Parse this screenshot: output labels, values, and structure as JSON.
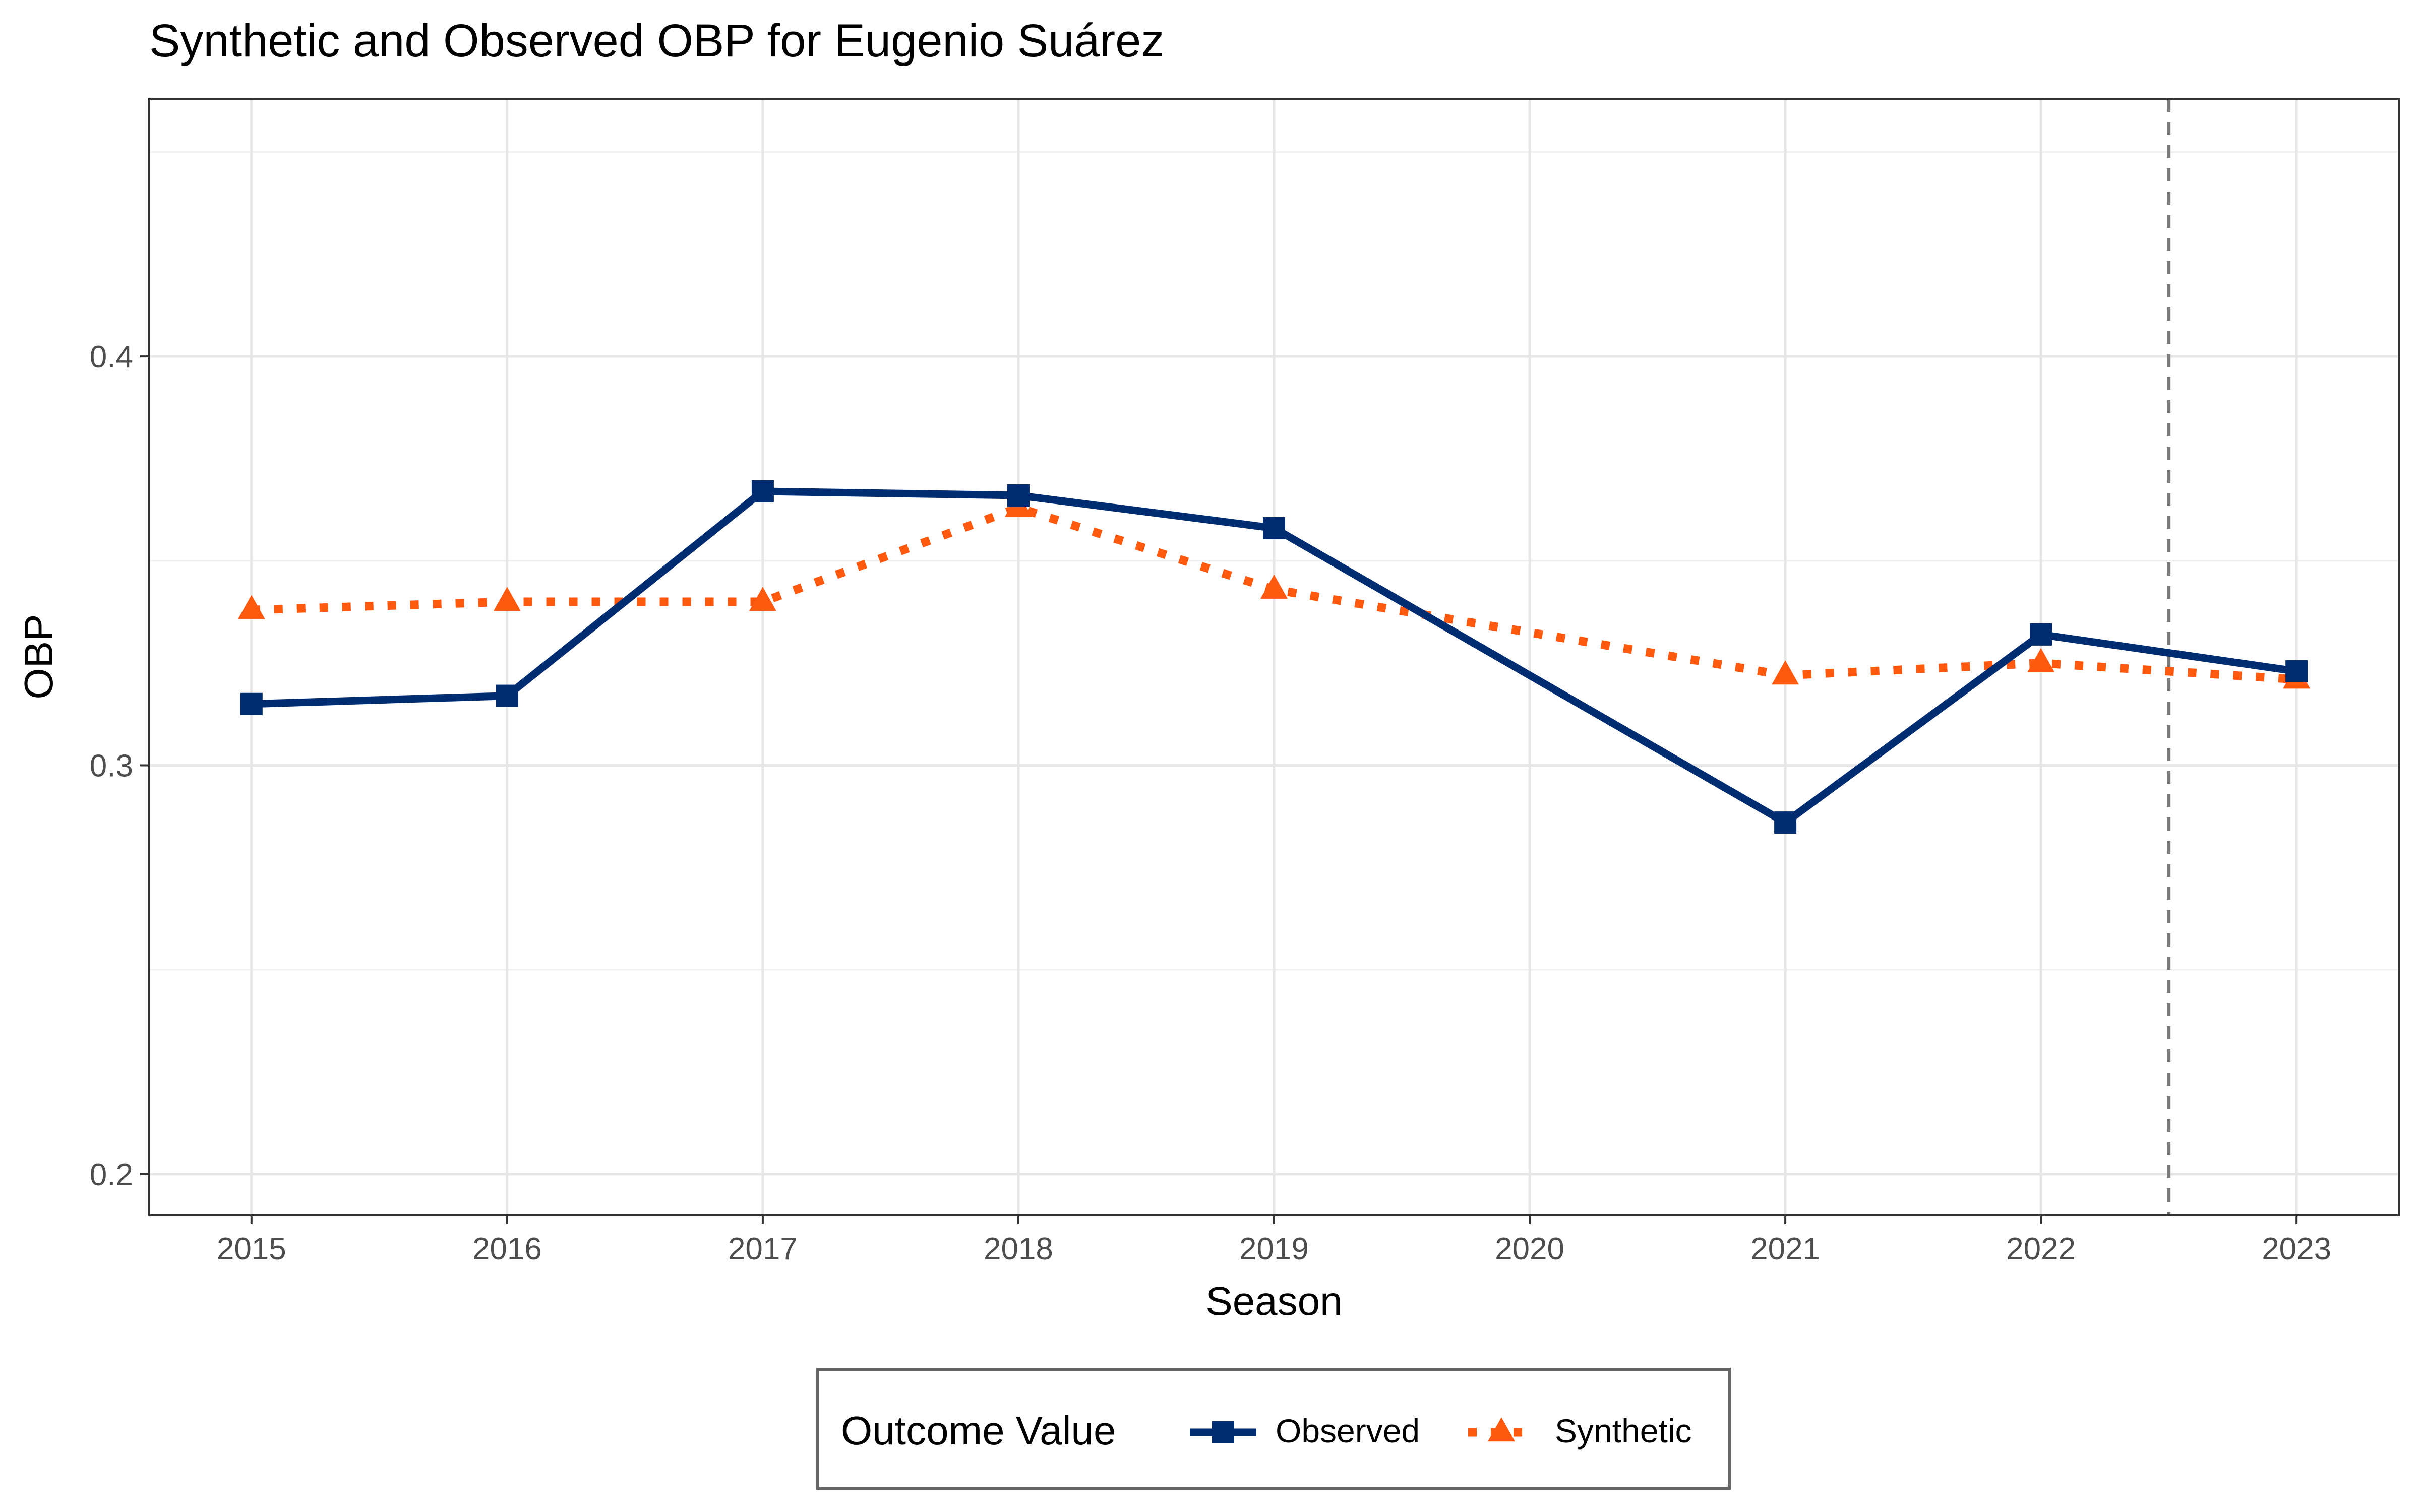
{
  "chart_data": {
    "type": "line",
    "title": "Synthetic and Observed OBP for Eugenio Suárez",
    "xlabel": "Season",
    "ylabel": "OBP",
    "x": [
      2015,
      2016,
      2017,
      2018,
      2019,
      2020,
      2021,
      2022,
      2023
    ],
    "x_tick_labels": [
      "2015",
      "2016",
      "2017",
      "2018",
      "2019",
      "2020",
      "2021",
      "2022",
      "2023"
    ],
    "y_ticks": [
      0.2,
      0.3,
      0.4
    ],
    "y_tick_labels": [
      "0.2",
      "0.3",
      "0.4"
    ],
    "xlim": [
      2014.6,
      2023.4
    ],
    "ylim": [
      0.19,
      0.463
    ],
    "grid": true,
    "treatment_line_x": 2022.5,
    "series": [
      {
        "name": "Observed",
        "color": "#002D72",
        "line_style": "solid",
        "marker": "square",
        "points": [
          [
            2015,
            0.315
          ],
          [
            2016,
            0.317
          ],
          [
            2017,
            0.367
          ],
          [
            2018,
            0.366
          ],
          [
            2019,
            0.358
          ],
          [
            2021,
            0.286
          ],
          [
            2022,
            0.332
          ],
          [
            2023,
            0.323
          ]
        ]
      },
      {
        "name": "Synthetic",
        "color": "#FF5910",
        "line_style": "dotted",
        "marker": "triangle",
        "points": [
          [
            2015,
            0.338
          ],
          [
            2016,
            0.34
          ],
          [
            2017,
            0.34
          ],
          [
            2018,
            0.363
          ],
          [
            2019,
            0.343
          ],
          [
            2021,
            0.322
          ],
          [
            2022,
            0.325
          ],
          [
            2023,
            0.321
          ]
        ]
      }
    ],
    "legend": {
      "title": "Outcome Value",
      "position": "bottom",
      "entries": [
        "Observed",
        "Synthetic"
      ]
    }
  }
}
